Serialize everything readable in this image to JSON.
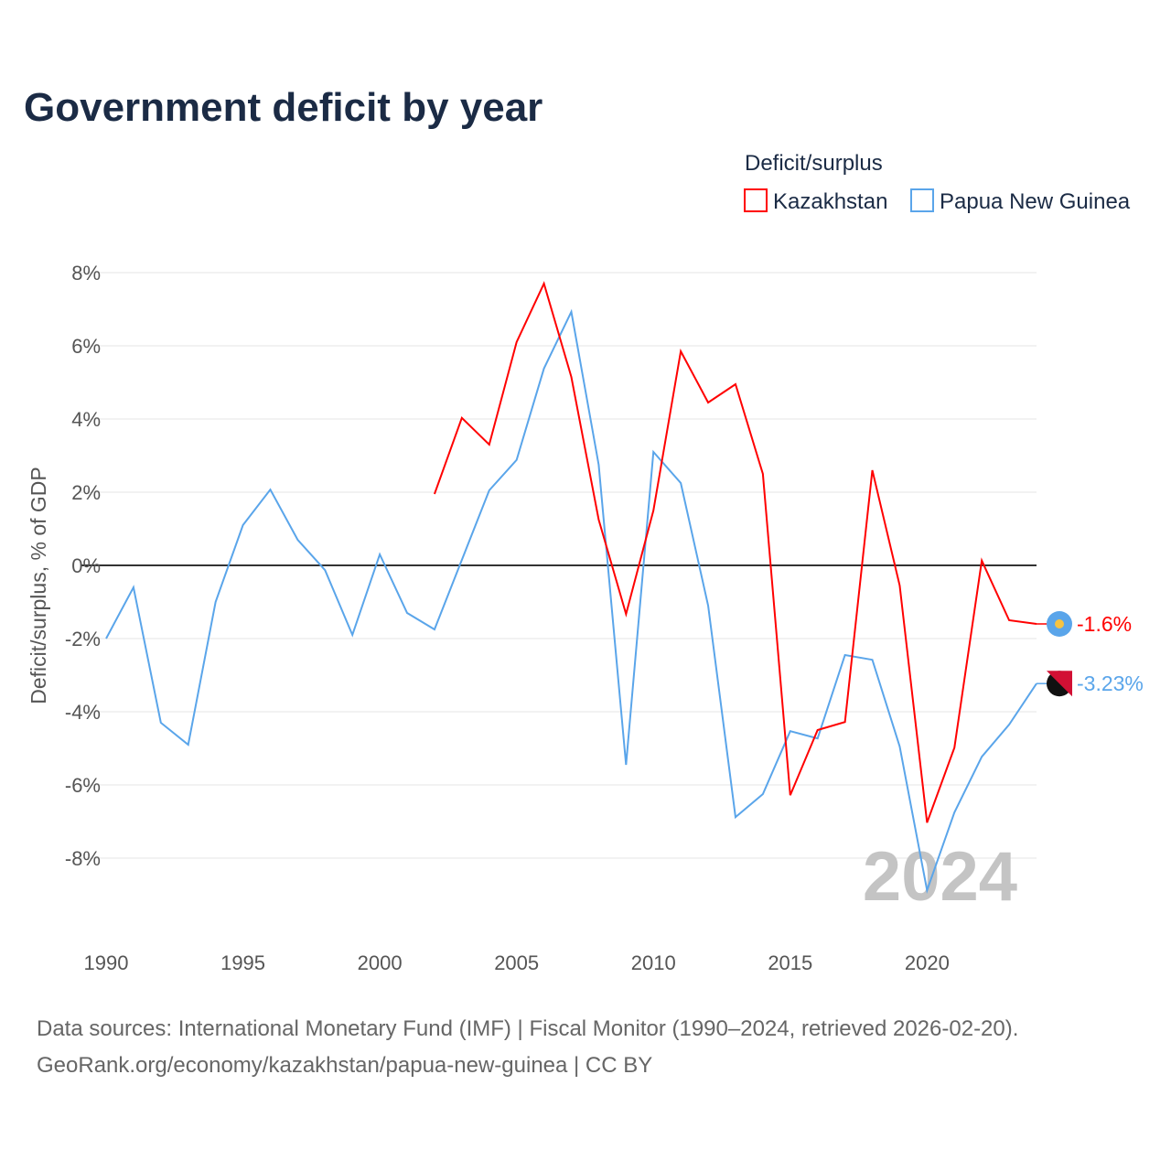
{
  "chart_data": {
    "type": "line",
    "title": "Government deficit by year",
    "ylabel": "Deficit/surplus, % of GDP",
    "xlabel": "",
    "ylim": [
      -10,
      8
    ],
    "xlim": [
      1990,
      2024
    ],
    "yticks": [
      8,
      6,
      4,
      2,
      0,
      -2,
      -4,
      -6,
      -8
    ],
    "ytick_labels": [
      "8%",
      "6%",
      "4%",
      "2%",
      "0%",
      "-2%",
      "-4%",
      "-6%",
      "-8%"
    ],
    "xticks": [
      1990,
      1995,
      2000,
      2005,
      2010,
      2015,
      2020
    ],
    "xtick_labels": [
      "1990",
      "1995",
      "2000",
      "2005",
      "2010",
      "2015",
      "2020"
    ],
    "grid": true,
    "legend_title": "Deficit/surplus",
    "legend_position": "top-right",
    "year_watermark": "2024",
    "series": [
      {
        "name": "Kazakhstan",
        "color": "#ff0000",
        "end_label": "-1.6%",
        "x": [
          2002,
          2003,
          2004,
          2005,
          2006,
          2007,
          2008,
          2009,
          2010,
          2011,
          2012,
          2013,
          2014,
          2015,
          2016,
          2017,
          2018,
          2019,
          2020,
          2021,
          2022,
          2023,
          2024
        ],
        "values": [
          1.95,
          4.03,
          3.3,
          6.1,
          7.7,
          5.15,
          1.25,
          -1.33,
          1.5,
          5.85,
          4.45,
          4.95,
          2.5,
          -6.28,
          -4.5,
          -4.28,
          2.6,
          -0.55,
          -7.03,
          -4.98,
          0.13,
          -1.5,
          -1.6
        ]
      },
      {
        "name": "Papua New Guinea",
        "color": "#5aa5ea",
        "end_label": "-3.23%",
        "x": [
          1990,
          1991,
          1992,
          1993,
          1994,
          1995,
          1996,
          1997,
          1998,
          1999,
          2000,
          2001,
          2002,
          2003,
          2004,
          2005,
          2006,
          2007,
          2008,
          2009,
          2010,
          2011,
          2012,
          2013,
          2014,
          2015,
          2016,
          2017,
          2018,
          2019,
          2020,
          2021,
          2022,
          2023,
          2024
        ],
        "values": [
          -2.0,
          -0.6,
          -4.3,
          -4.9,
          -1.0,
          1.1,
          2.07,
          0.7,
          -0.13,
          -1.9,
          0.3,
          -1.3,
          -1.75,
          0.15,
          2.05,
          2.88,
          5.38,
          6.93,
          2.75,
          -5.45,
          3.1,
          2.25,
          -1.1,
          -6.88,
          -6.25,
          -4.53,
          -4.73,
          -2.45,
          -2.58,
          -4.95,
          -8.88,
          -6.75,
          -5.23,
          -4.35,
          -3.23
        ]
      }
    ]
  },
  "footer": {
    "line1": "Data sources: International Monetary Fund (IMF) | Fiscal Monitor (1990–2024, retrieved 2026-02-20).",
    "line2": "GeoRank.org/economy/kazakhstan/papua-new-guinea | CC BY"
  }
}
